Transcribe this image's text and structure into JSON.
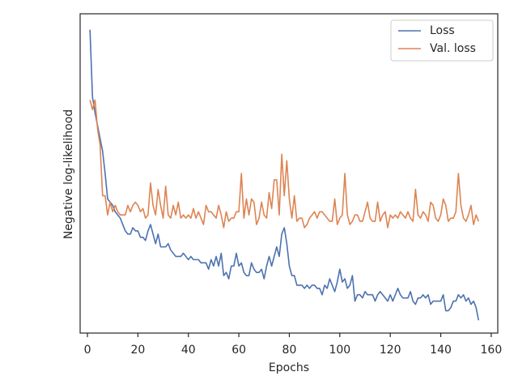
{
  "chart_data": {
    "type": "line",
    "x_label": "Epochs",
    "y_label": "Negative log-likelihood",
    "x": [
      1,
      2,
      3,
      4,
      5,
      6,
      7,
      8,
      9,
      10,
      11,
      12,
      13,
      14,
      15,
      16,
      17,
      18,
      19,
      20,
      21,
      22,
      23,
      24,
      25,
      26,
      27,
      28,
      29,
      30,
      31,
      32,
      33,
      34,
      35,
      36,
      37,
      38,
      39,
      40,
      41,
      42,
      43,
      44,
      45,
      46,
      47,
      48,
      49,
      50,
      51,
      52,
      53,
      54,
      55,
      56,
      57,
      58,
      59,
      60,
      61,
      62,
      63,
      64,
      65,
      66,
      67,
      68,
      69,
      70,
      71,
      72,
      73,
      74,
      75,
      76,
      77,
      78,
      79,
      80,
      81,
      82,
      83,
      84,
      85,
      86,
      87,
      88,
      89,
      90,
      91,
      92,
      93,
      94,
      95,
      96,
      97,
      98,
      99,
      100,
      101,
      102,
      103,
      104,
      105,
      106,
      107,
      108,
      109,
      110,
      111,
      112,
      113,
      114,
      115,
      116,
      117,
      118,
      119,
      120,
      121,
      122,
      123,
      124,
      125,
      126,
      127,
      128,
      129,
      130,
      131,
      132,
      133,
      134,
      135,
      136,
      137,
      138,
      139,
      140,
      141,
      142,
      143,
      144,
      145,
      146,
      147,
      148,
      149,
      150,
      151,
      152,
      153,
      154,
      155
    ],
    "series": [
      {
        "name": "Loss",
        "color": "#4c72b0",
        "values": [
          95,
          74,
          69,
          65,
          61,
          57,
          50,
          42,
          41,
          40,
          38,
          37,
          36,
          34,
          32,
          31,
          31,
          33,
          32,
          32,
          30,
          30,
          29,
          32,
          34,
          31,
          28,
          31,
          27,
          27,
          27,
          28,
          26,
          25,
          24,
          24,
          24,
          25,
          24,
          23,
          24,
          23,
          23,
          23,
          22,
          22,
          22,
          20,
          23,
          21,
          24,
          21,
          25,
          18,
          19,
          17,
          21,
          21,
          25,
          21,
          22,
          19,
          18,
          18,
          22,
          20,
          19,
          19,
          20,
          17,
          21,
          24,
          21,
          24,
          27,
          24,
          31,
          33,
          28,
          21,
          18,
          18,
          15,
          15,
          15,
          14,
          15,
          14,
          15,
          15,
          14,
          14,
          12,
          15,
          14,
          17,
          15,
          13,
          16,
          20,
          16,
          17,
          14,
          15,
          18,
          10,
          12,
          12,
          11,
          13,
          12,
          12,
          12,
          10,
          12,
          13,
          12,
          11,
          10,
          12,
          10,
          12,
          14,
          12,
          11,
          11,
          11,
          13,
          10,
          9,
          11,
          11,
          12,
          11,
          12,
          9,
          10,
          10,
          10,
          10,
          12,
          7,
          7,
          8,
          10,
          10,
          12,
          11,
          12,
          10,
          11,
          9,
          10,
          8,
          4
        ]
      },
      {
        "name": "Val. loss",
        "color": "#dd8452",
        "values": [
          73,
          70,
          73,
          64,
          59,
          43,
          43,
          37,
          41,
          38,
          40,
          38,
          37,
          37,
          37,
          40,
          38,
          40,
          41,
          40,
          38,
          39,
          36,
          37,
          47,
          40,
          37,
          45,
          40,
          36,
          46,
          37,
          36,
          40,
          37,
          41,
          36,
          37,
          36,
          37,
          36,
          39,
          36,
          38,
          36,
          34,
          40,
          38,
          38,
          37,
          36,
          40,
          37,
          33,
          38,
          35,
          36,
          36,
          38,
          38,
          50,
          36,
          42,
          37,
          42,
          41,
          34,
          36,
          41,
          37,
          36,
          44,
          39,
          48,
          48,
          37,
          56,
          43,
          54,
          42,
          36,
          43,
          35,
          36,
          36,
          33,
          34,
          36,
          37,
          38,
          36,
          38,
          38,
          37,
          36,
          35,
          35,
          42,
          34,
          36,
          37,
          50,
          37,
          34,
          35,
          37,
          37,
          35,
          35,
          38,
          41,
          36,
          35,
          35,
          41,
          35,
          37,
          38,
          33,
          37,
          36,
          37,
          36,
          38,
          37,
          36,
          38,
          36,
          35,
          45,
          37,
          36,
          38,
          37,
          35,
          41,
          40,
          36,
          35,
          37,
          42,
          40,
          35,
          36,
          36,
          38,
          50,
          40,
          36,
          35,
          37,
          40,
          34,
          37,
          35
        ]
      }
    ],
    "xlim": [
      -2.9,
      162.6
    ],
    "xticks": [
      0,
      20,
      40,
      60,
      80,
      100,
      120,
      140,
      160
    ],
    "ylim": [
      0,
      100
    ],
    "legend": "upper right"
  }
}
